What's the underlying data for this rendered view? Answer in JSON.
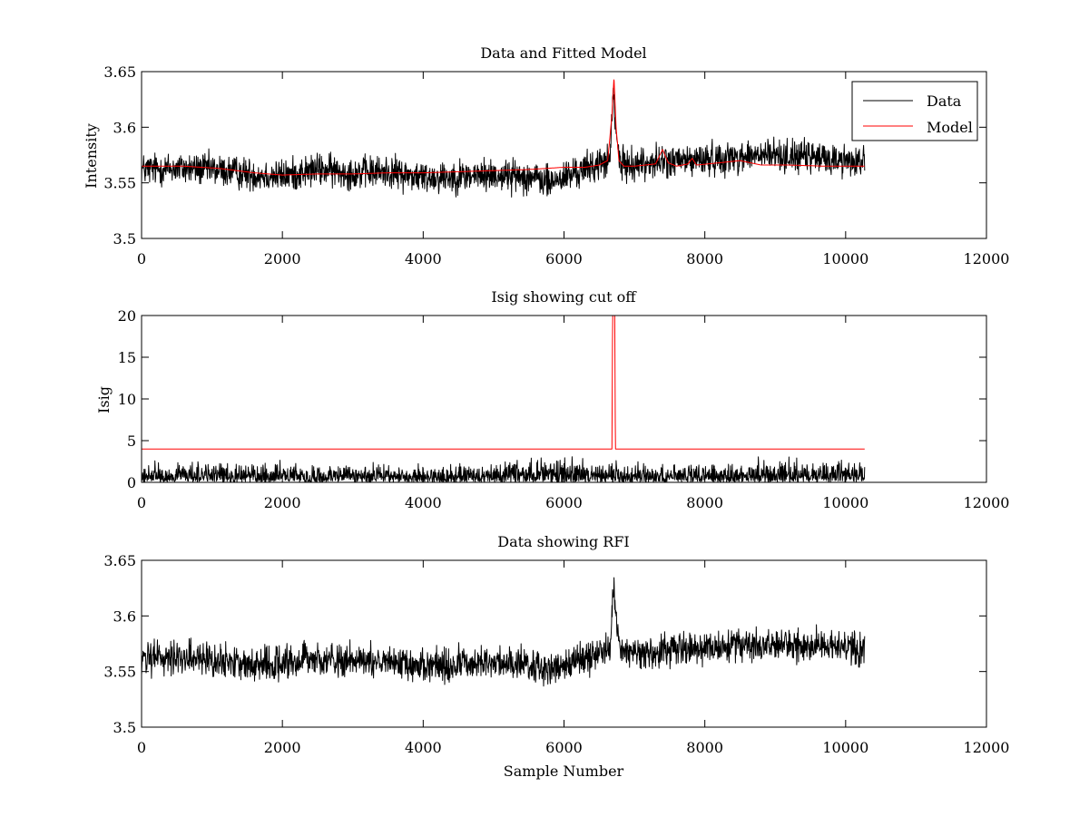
{
  "figure": {
    "x_ticks": [
      "0",
      "2000",
      "4000",
      "6000",
      "8000",
      "10000",
      "12000"
    ]
  },
  "chart_data": [
    {
      "type": "line",
      "title": "Data and Fitted Model",
      "xlabel": "",
      "ylabel": "Intensity",
      "xlim": [
        0,
        12000
      ],
      "ylim": [
        3.5,
        3.65
      ],
      "y_ticks": [
        "3.5",
        "3.55",
        "3.6",
        "3.65"
      ],
      "grid": false,
      "legend": "top-right",
      "series": [
        {
          "name": "Data",
          "color": "#000000",
          "style": "noisy",
          "x": [
            0,
            500,
            1000,
            1500,
            2000,
            2500,
            3000,
            3500,
            4000,
            4500,
            5000,
            5500,
            5800,
            6200,
            6500,
            6650,
            6700,
            6730,
            6800,
            7000,
            7400,
            7800,
            8200,
            8600,
            9000,
            9500,
            10000,
            10270
          ],
          "y": [
            3.562,
            3.563,
            3.562,
            3.558,
            3.556,
            3.562,
            3.559,
            3.56,
            3.555,
            3.556,
            3.557,
            3.556,
            3.55,
            3.56,
            3.567,
            3.57,
            3.63,
            3.6,
            3.566,
            3.567,
            3.569,
            3.57,
            3.572,
            3.574,
            3.575,
            3.573,
            3.57,
            3.57
          ],
          "noise": 0.009
        },
        {
          "name": "Model",
          "color": "#ff0000",
          "style": "smooth",
          "x": [
            0,
            600,
            1100,
            1600,
            2000,
            2500,
            3000,
            3500,
            4000,
            4500,
            5000,
            5500,
            6000,
            6300,
            6500,
            6620,
            6680,
            6710,
            6740,
            6780,
            6850,
            7000,
            7300,
            7400,
            7480,
            7600,
            7760,
            7820,
            7880,
            8200,
            8500,
            8800,
            9200,
            9700,
            10270
          ],
          "y": [
            3.565,
            3.565,
            3.563,
            3.559,
            3.557,
            3.558,
            3.558,
            3.559,
            3.559,
            3.56,
            3.561,
            3.562,
            3.564,
            3.564,
            3.566,
            3.57,
            3.61,
            3.645,
            3.6,
            3.57,
            3.565,
            3.565,
            3.567,
            3.58,
            3.568,
            3.565,
            3.567,
            3.572,
            3.566,
            3.568,
            3.57,
            3.566,
            3.566,
            3.565,
            3.565
          ],
          "noise": 0
        }
      ]
    },
    {
      "type": "line",
      "title": "Isig showing cut off",
      "xlabel": "",
      "ylabel": "Isig",
      "xlim": [
        0,
        12000
      ],
      "ylim": [
        0,
        20
      ],
      "y_ticks": [
        "0",
        "5",
        "10",
        "15",
        "20"
      ],
      "grid": false,
      "legend": "none",
      "series": [
        {
          "name": "",
          "color": "#000000",
          "style": "isig",
          "x": [
            0,
            1000,
            2000,
            3000,
            4000,
            5000,
            5800,
            6500,
            7000,
            8000,
            9000,
            10000,
            10270
          ],
          "y": [
            1.0,
            1.0,
            1.0,
            0.9,
            0.9,
            1.0,
            1.4,
            1.0,
            0.9,
            1.0,
            1.2,
            1.1,
            1.0
          ],
          "noise": 1.0
        },
        {
          "name": "",
          "color": "#ff0000",
          "style": "smooth",
          "x": [
            0,
            6680,
            6690,
            6720,
            6730,
            10270
          ],
          "y": [
            4,
            4,
            20,
            20,
            4,
            4
          ],
          "noise": 0
        }
      ]
    },
    {
      "type": "line",
      "title": "Data showing RFI",
      "xlabel": "Sample Number",
      "ylabel": "",
      "xlim": [
        0,
        12000
      ],
      "ylim": [
        3.5,
        3.65
      ],
      "y_ticks": [
        "3.5",
        "3.55",
        "3.6",
        "3.65"
      ],
      "grid": false,
      "legend": "none",
      "series": [
        {
          "name": "",
          "color": "#000000",
          "style": "noisy",
          "x": [
            0,
            500,
            1000,
            1500,
            2000,
            2500,
            3000,
            3500,
            4000,
            4500,
            5000,
            5500,
            5800,
            6200,
            6500,
            6650,
            6700,
            6730,
            6800,
            7000,
            7400,
            7800,
            8200,
            8600,
            9000,
            9500,
            10000,
            10270
          ],
          "y": [
            3.562,
            3.563,
            3.562,
            3.558,
            3.556,
            3.562,
            3.559,
            3.56,
            3.555,
            3.556,
            3.557,
            3.556,
            3.55,
            3.56,
            3.567,
            3.57,
            3.63,
            3.6,
            3.566,
            3.567,
            3.569,
            3.57,
            3.572,
            3.574,
            3.575,
            3.573,
            3.57,
            3.57
          ],
          "noise": 0.009
        }
      ]
    }
  ]
}
